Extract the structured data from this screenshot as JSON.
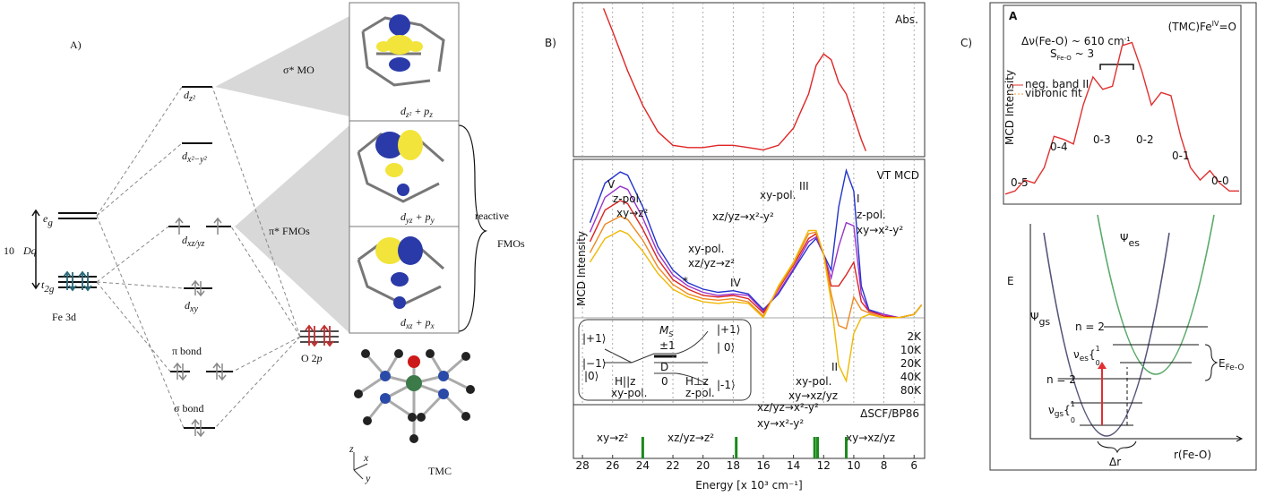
{
  "panel_a": {
    "label": "A)",
    "eg": [
      "e",
      "g"
    ],
    "t2g": [
      "t",
      "2g"
    ],
    "dq": [
      "10",
      "Dq"
    ],
    "fe": "Fe 3d",
    "o": [
      "O 2",
      "p"
    ],
    "levels": [
      [
        "d",
        "z²"
      ],
      [
        "d",
        "x²−y²"
      ],
      [
        "d",
        "xz/yz"
      ],
      [
        "d",
        "xy"
      ]
    ],
    "pi_bond": "π bond",
    "sigma_bond": "σ bond",
    "sigma_mo": "σ* MO",
    "pi_fmos": "π* FMOs",
    "reactive": [
      "reactive",
      "FMOs"
    ],
    "mo_labels": [
      [
        "d",
        "z²",
        " + p",
        "z"
      ],
      [
        "d",
        "yz",
        " + p",
        "y"
      ],
      [
        "d",
        "xz",
        " + p",
        "x"
      ]
    ],
    "tmc": "TMC",
    "axes": [
      "z",
      "x",
      "y"
    ]
  },
  "panel_b": {
    "label": "B)",
    "abs": "Abs.",
    "mcd": "VT MCD",
    "ylabel": "MCD Intensity",
    "xlabel": "Energy [x 10³ cm⁻¹]",
    "calc": "ΔSCF/BP86",
    "bands": [
      {
        "text": "V",
        "color": "#111111"
      },
      {
        "text": "z-pol.",
        "color": "#2a8a2a"
      },
      {
        "text": "xy→z²",
        "color": "#111111"
      },
      {
        "text": "xy-pol.",
        "color": "#2a8a2a"
      },
      {
        "text": "xz/yz→z²",
        "color": "#111111"
      },
      {
        "text": "*",
        "color": "#111111"
      },
      {
        "text": "IV",
        "color": "#111111"
      },
      {
        "text": "xy-pol.",
        "color": "#2a8a2a"
      },
      {
        "text": "III",
        "color": "#111111"
      },
      {
        "text": "xz/yz→x²-y²",
        "color": "#111111"
      },
      {
        "text": "I",
        "color": "#111111"
      },
      {
        "text": "z-pol.",
        "color": "#2a8a2a"
      },
      {
        "text": "xy→x²-y²",
        "color": "#111111"
      },
      {
        "text": "II",
        "color": "#111111"
      },
      {
        "text": "xy-pol.",
        "color": "#2a8a2a"
      },
      {
        "text": "xy→xz/yz",
        "color": "#111111"
      }
    ],
    "ms": [
      "|+1⟩",
      "|−1⟩",
      "|0⟩",
      "M",
      "S",
      "±1",
      "D",
      "0",
      "H||z",
      "H⊥z",
      "xy-pol.",
      "z-pol.",
      "|+1⟩",
      "| 0⟩",
      "|-1⟩"
    ],
    "calc_labels": [
      "xy→z²",
      "xz/yz→z²",
      "xz/yz→x²-y²",
      "xy→x²-y²",
      "xy→xz/yz"
    ]
  },
  "panel_c": {
    "label": "C)",
    "inset": "A",
    "compound": [
      "(TMC)Fe",
      "IV",
      "=O"
    ],
    "dnu": [
      "Δν(Fe-O) ~ 610 cm",
      "-1"
    ],
    "s": [
      "S",
      "Fe-O",
      " ~ 3"
    ],
    "ylabel": "MCD Intensity",
    "legend": [
      {
        "text": "neg. band II",
        "color": "#e03030"
      },
      {
        "text": "vibronic fit",
        "color": "#f0a040"
      }
    ],
    "progression": [
      "0-5",
      "0-4",
      "0-3",
      "0-2",
      "0-1",
      "0-0"
    ],
    "e": "E",
    "psi_es": [
      "Ψ",
      "es"
    ],
    "psi_gs": [
      "Ψ",
      "gs"
    ],
    "n_es": "n = 2",
    "n_gs": "n = 2",
    "nu_es": [
      "ν",
      "es",
      "{",
      "1",
      "0"
    ],
    "nu_gs": [
      "ν",
      "gs",
      "{",
      "1",
      "0"
    ],
    "efeo": [
      "E",
      "Fe-O"
    ],
    "dr": "Δr",
    "r": "r(Fe-O)"
  },
  "chart_data": [
    {
      "type": "line",
      "x": [
        26.6,
        26,
        25,
        24,
        23,
        22,
        21,
        20,
        19,
        18,
        17,
        16,
        15,
        14,
        13,
        12.5,
        12,
        11.5,
        11,
        10.5,
        10,
        9.5,
        9.2
      ],
      "series": [
        {
          "color": "#e02424",
          "values": [
            1.3,
            1.1,
            0.75,
            0.45,
            0.22,
            0.1,
            0.08,
            0.08,
            0.1,
            0.1,
            0.08,
            0.06,
            0.1,
            0.25,
            0.55,
            0.8,
            0.9,
            0.85,
            0.65,
            0.55,
            0.35,
            0.15,
            0.05
          ]
        }
      ],
      "xlim": [
        28.6,
        5.3
      ],
      "ylim": [
        0,
        1.35
      ],
      "xticks": [
        28,
        26,
        24,
        22,
        20,
        18,
        16,
        14,
        12,
        10,
        8,
        6
      ],
      "grid": true
    },
    {
      "type": "line",
      "x": [
        27.5,
        26.5,
        25.5,
        25,
        24,
        23,
        22,
        21,
        20,
        19,
        18,
        17,
        16,
        15,
        14,
        13,
        12.5,
        12,
        11.5,
        11,
        10.5,
        10,
        9.5,
        9,
        8,
        7,
        6,
        5.5
      ],
      "series": [
        {
          "name": "2K",
          "color": "#2233cc",
          "values": [
            0.6,
            0.85,
            0.92,
            0.9,
            0.7,
            0.45,
            0.3,
            0.22,
            0.18,
            0.16,
            0.17,
            0.15,
            0.05,
            0.15,
            0.3,
            0.45,
            0.5,
            0.4,
            0.3,
            0.7,
            0.93,
            0.8,
            0.2,
            0.05,
            0.02,
            0.0,
            0.02,
            0.08
          ]
        },
        {
          "name": "10K",
          "color": "#9933cc",
          "values": [
            0.54,
            0.76,
            0.83,
            0.81,
            0.63,
            0.41,
            0.27,
            0.2,
            0.16,
            0.14,
            0.15,
            0.14,
            0.04,
            0.16,
            0.31,
            0.48,
            0.51,
            0.4,
            0.25,
            0.45,
            0.6,
            0.58,
            0.15,
            0.04,
            0.02,
            0.0,
            0.02,
            0.08
          ]
        },
        {
          "name": "20K",
          "color": "#dd2222",
          "values": [
            0.48,
            0.68,
            0.74,
            0.72,
            0.56,
            0.37,
            0.24,
            0.18,
            0.14,
            0.13,
            0.14,
            0.12,
            0.03,
            0.18,
            0.33,
            0.5,
            0.53,
            0.4,
            0.2,
            0.2,
            0.27,
            0.35,
            0.1,
            0.04,
            0.01,
            0.0,
            0.02,
            0.08
          ]
        },
        {
          "name": "40K",
          "color": "#ee8822",
          "values": [
            0.41,
            0.59,
            0.64,
            0.62,
            0.49,
            0.32,
            0.21,
            0.15,
            0.12,
            0.11,
            0.12,
            0.1,
            0.01,
            0.19,
            0.34,
            0.53,
            0.54,
            0.4,
            0.15,
            -0.05,
            -0.07,
            0.13,
            0.05,
            0.03,
            0.0,
            0.0,
            0.02,
            0.08
          ]
        },
        {
          "name": "80K",
          "color": "#f0b800",
          "values": [
            0.35,
            0.5,
            0.55,
            0.53,
            0.42,
            0.28,
            0.18,
            0.13,
            0.1,
            0.09,
            0.1,
            0.09,
            0.0,
            0.2,
            0.35,
            0.55,
            0.55,
            0.4,
            0.1,
            -0.3,
            -0.4,
            -0.1,
            0.0,
            0.02,
            0.0,
            0.0,
            0.02,
            0.08
          ]
        }
      ],
      "xlim": [
        28.6,
        5.3
      ],
      "ylim": [
        -0.55,
        1
      ],
      "xticks": [
        28,
        26,
        24,
        22,
        20,
        18,
        16,
        14,
        12,
        10,
        8,
        6
      ],
      "grid": true
    },
    {
      "type": "stick",
      "x": [
        24,
        17.8,
        12.6,
        12.4,
        10.5
      ],
      "values": [
        1,
        1,
        1,
        1,
        1
      ],
      "color": "#1a8a1a",
      "xlim": [
        28.6,
        5.3
      ],
      "ylim": [
        0,
        2.5
      ],
      "xticks": [
        28,
        26,
        24,
        22,
        20,
        18,
        16,
        14,
        12,
        10,
        8,
        6
      ]
    },
    {
      "type": "line",
      "series": [
        {
          "color": "#e03030",
          "values": [
            0.03,
            0.05,
            0.12,
            0.1,
            0.2,
            0.4,
            0.38,
            0.35,
            0.6,
            0.78,
            0.7,
            0.72,
            0.98,
            1.0,
            0.82,
            0.6,
            0.68,
            0.66,
            0.4,
            0.2,
            0.12,
            0.18,
            0.1,
            0.05,
            0.05
          ]
        }
      ],
      "ylim": [
        0,
        1.1
      ]
    }
  ]
}
